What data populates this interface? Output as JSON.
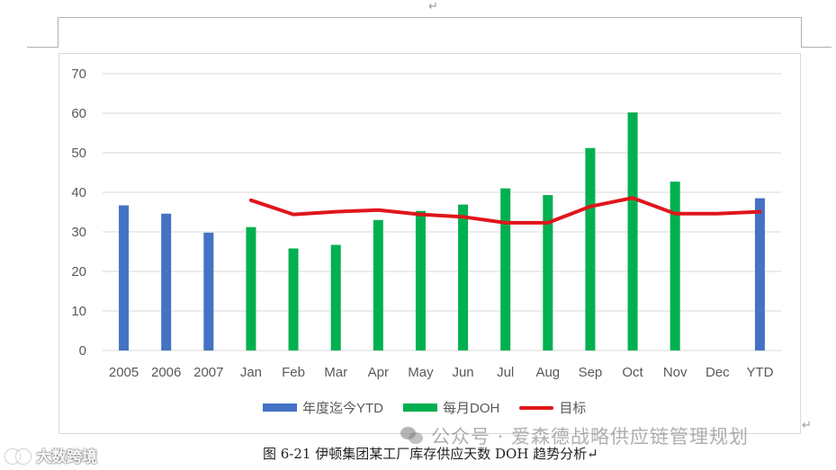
{
  "document": {
    "paragraph_mark": "↵",
    "caption": "图 6-21 伊顿集团某工厂库存供应天数 DOH 趋势分析↵"
  },
  "watermarks": {
    "wechat": "公众号 · 爱森德战略供应链管理规划",
    "site": "大数跨境"
  },
  "colors": {
    "ytd": "#4472C4",
    "monthly": "#00B050",
    "target": "#E0161B",
    "grid": "#D9D9D9",
    "axis_text": "#595959"
  },
  "chart_data": {
    "type": "bar",
    "title": "",
    "xlabel": "",
    "ylabel": "",
    "categories": [
      "2005",
      "2006",
      "2007",
      "Jan",
      "Feb",
      "Mar",
      "Apr",
      "May",
      "Jun",
      "Jul",
      "Aug",
      "Sep",
      "Oct",
      "Nov",
      "Dec",
      "YTD"
    ],
    "ylim": [
      0,
      70
    ],
    "yticks": [
      "0",
      "10",
      "20",
      "30",
      "40",
      "50",
      "60",
      "70"
    ],
    "grid": true,
    "legend_position": "bottom",
    "series": [
      {
        "name": "年度迄今YTD",
        "type": "bar",
        "color": "#4472C4",
        "values": [
          36.7,
          34.6,
          29.8,
          null,
          null,
          null,
          null,
          null,
          null,
          null,
          null,
          null,
          null,
          null,
          null,
          38.5
        ]
      },
      {
        "name": "每月DOH",
        "type": "bar",
        "color": "#00B050",
        "values": [
          null,
          null,
          null,
          31.2,
          25.8,
          26.7,
          33.0,
          35.3,
          36.9,
          41.0,
          39.3,
          51.2,
          60.2,
          42.7,
          null,
          null
        ]
      },
      {
        "name": "目标",
        "type": "line",
        "color": "#E0161B",
        "values": [
          null,
          null,
          null,
          38.0,
          34.4,
          35.1,
          35.5,
          34.4,
          33.8,
          32.3,
          32.3,
          36.4,
          38.6,
          34.6,
          34.6,
          35.1
        ]
      }
    ]
  }
}
